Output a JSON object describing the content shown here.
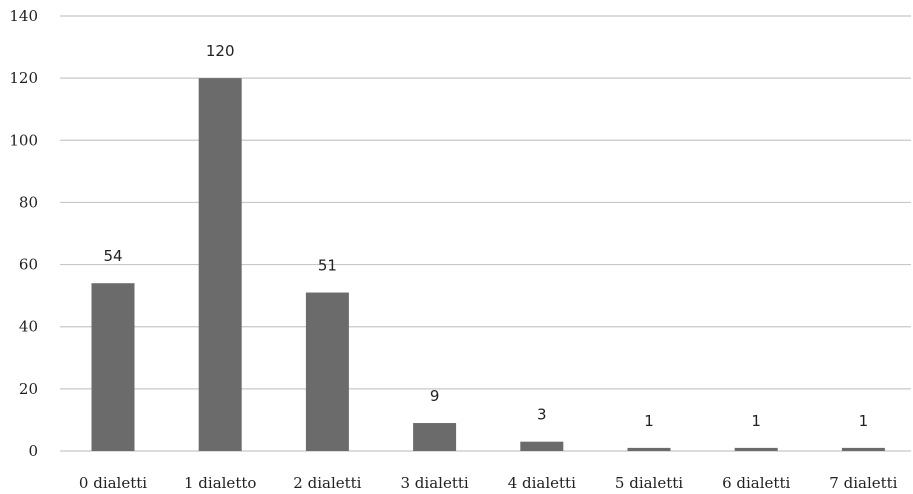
{
  "chart_data": {
    "type": "bar",
    "categories": [
      "0 dialetti",
      "1 dialetto",
      "2 dialetti",
      "3 dialetti",
      "4 dialetti",
      "5 dialetti",
      "6 dialetti",
      "7 dialetti"
    ],
    "values": [
      54,
      120,
      51,
      9,
      3,
      1,
      1,
      1
    ],
    "data_labels": [
      "54",
      "120",
      "51",
      "9",
      "3",
      "1",
      "1",
      "1"
    ],
    "title": "",
    "xlabel": "",
    "ylabel": "",
    "ylim": [
      0,
      140
    ],
    "yticks": [
      0,
      20,
      40,
      60,
      80,
      100,
      120,
      140
    ],
    "grid": true,
    "legend": "none",
    "colors": {
      "bar": "#6b6b6b",
      "grid": "#c8c8c8",
      "text": "#222222"
    }
  }
}
